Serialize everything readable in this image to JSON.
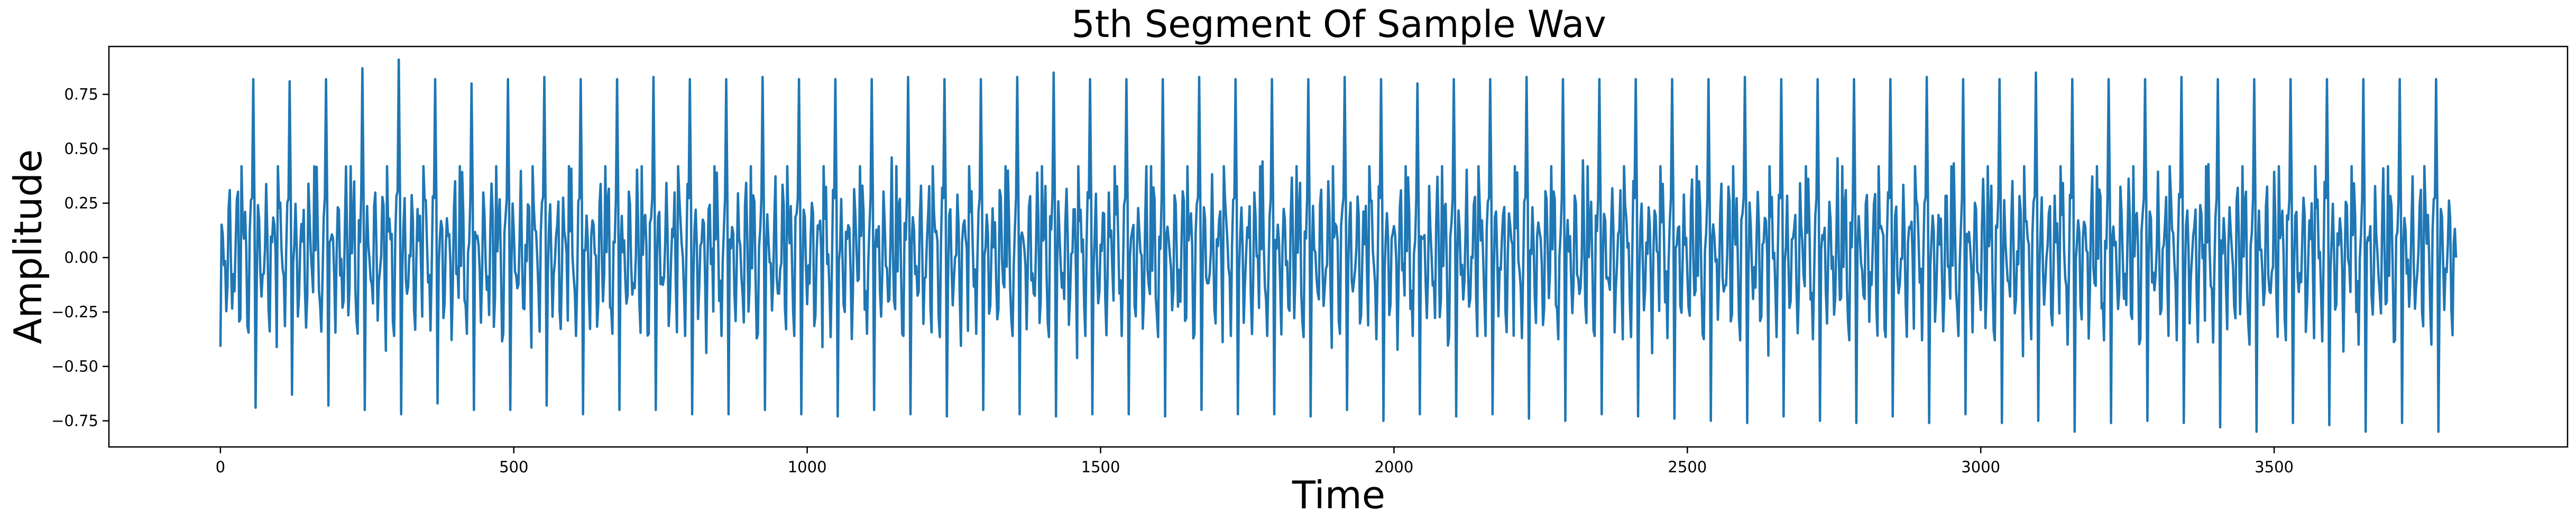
{
  "chart_data": {
    "type": "line",
    "title": "5th Segment Of Sample Wav",
    "xlabel": "Time",
    "ylabel": "Amplitude",
    "xlim": [
      -190,
      4000
    ],
    "ylim": [
      -0.87,
      0.97
    ],
    "xticks": [
      0,
      500,
      1000,
      1500,
      2000,
      2500,
      3000,
      3500
    ],
    "xtick_labels": [
      "0",
      "500",
      "1000",
      "1500",
      "2000",
      "2500",
      "3000",
      "3500"
    ],
    "yticks": [
      -0.75,
      -0.5,
      -0.25,
      0.0,
      0.25,
      0.5,
      0.75
    ],
    "ytick_labels": [
      "−0.75",
      "−0.50",
      "−0.25",
      "0.00",
      "0.25",
      "0.50",
      "0.75"
    ],
    "grid": false,
    "series": [
      {
        "color": "#1f77b4",
        "x_start": 0,
        "x_end": 3810,
        "period": 62,
        "first_value": -0.41,
        "last_value": 0.0,
        "peaks": [
          0.82,
          0.81,
          0.82,
          0.87,
          0.91,
          0.82,
          0.8,
          0.82,
          0.83,
          0.82,
          0.82,
          0.83,
          0.82,
          0.82,
          0.83,
          0.82,
          0.82,
          0.82,
          0.83,
          0.82,
          0.82,
          0.83,
          0.85,
          0.82,
          0.82,
          0.82,
          0.83,
          0.82,
          0.82,
          0.82,
          0.83,
          0.82,
          0.8,
          0.82,
          0.82,
          0.83,
          0.82,
          0.82,
          0.82,
          0.82,
          0.82,
          0.83,
          0.82,
          0.82,
          0.82,
          0.82,
          0.83,
          0.82,
          0.82,
          0.85,
          0.82,
          0.82,
          0.82,
          0.83,
          0.82,
          0.82,
          0.82,
          0.82,
          0.82,
          0.82,
          0.82
        ],
        "troughs": [
          -0.69,
          -0.63,
          -0.68,
          -0.7,
          -0.72,
          -0.67,
          -0.7,
          -0.7,
          -0.68,
          -0.72,
          -0.7,
          -0.7,
          -0.72,
          -0.72,
          -0.7,
          -0.72,
          -0.73,
          -0.7,
          -0.72,
          -0.73,
          -0.7,
          -0.72,
          -0.73,
          -0.72,
          -0.72,
          -0.73,
          -0.7,
          -0.72,
          -0.72,
          -0.73,
          -0.7,
          -0.75,
          -0.72,
          -0.73,
          -0.72,
          -0.74,
          -0.75,
          -0.72,
          -0.73,
          -0.74,
          -0.75,
          -0.76,
          -0.73,
          -0.75,
          -0.76,
          -0.73,
          -0.76,
          -0.72,
          -0.76,
          -0.75,
          -0.8,
          -0.76,
          -0.75,
          -0.76,
          -0.78,
          -0.8,
          -0.76,
          -0.77,
          -0.8,
          -0.76,
          -0.8
        ]
      }
    ]
  }
}
